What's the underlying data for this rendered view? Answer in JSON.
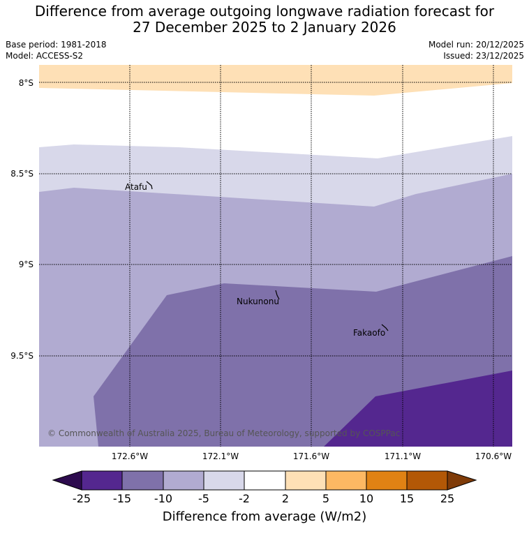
{
  "title_line1": "Difference from average outgoing longwave radiation forecast for",
  "title_line2": "27 December 2025 to 2 January 2026",
  "base_period": "Base period: 1981-2018",
  "model": "Model: ACCESS-S2",
  "model_run": "Model run: 20/12/2025",
  "issued": "Issued: 23/12/2025",
  "lat_labels": [
    "8°S",
    "8.5°S",
    "9°S",
    "9.5°S"
  ],
  "lon_labels": [
    "172.6°W",
    "172.1°W",
    "171.6°W",
    "171.1°W",
    "170.6°W"
  ],
  "places": {
    "atafu": "Atafu",
    "nukunonu": "Nukunonu",
    "fakaofo": "Fakaofo"
  },
  "copyright": "© Commonwealth of Australia 2025, Bureau of Meteorology, supported by COSPPac",
  "colorbar": {
    "ticks": [
      "-25",
      "-15",
      "-10",
      "-5",
      "-2",
      "2",
      "5",
      "10",
      "15",
      "25"
    ],
    "title": "Difference from average (W/m2)",
    "colors": {
      "below_min": "#2d0b4e",
      "m25_m15": "#54278f",
      "m15_m10": "#7f71aa",
      "m10_m5": "#b1abd1",
      "m5_m2": "#d8d8ea",
      "m2_2": "#ffffff",
      "p2_5": "#fee0b6",
      "p5_10": "#fdb863",
      "p10_15": "#e08214",
      "p15_25": "#b35806",
      "above_max": "#7f3b08"
    }
  }
}
